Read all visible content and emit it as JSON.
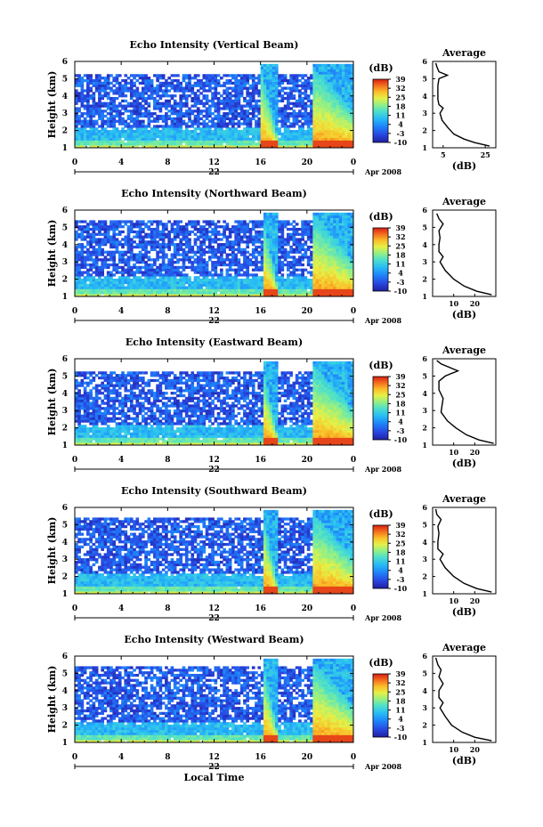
{
  "figure": {
    "x_axis_label": "Local Time",
    "date_label": "22",
    "month_year_label": "Apr 2008",
    "avg_title": "Average",
    "avg_xlabel": "(dB)",
    "colorbar_label": "(dB)"
  },
  "chart_data": [
    {
      "type": "heatmap",
      "title": "Echo Intensity (Vertical Beam)",
      "ylabel": "Height (km)",
      "xlabel": "Local Time",
      "x_ticks": [
        "0",
        "4",
        "8",
        "12",
        "16",
        "20",
        "0"
      ],
      "x_range_hours": [
        0,
        24
      ],
      "ylim": [
        1,
        6
      ],
      "y_ticks": [
        "1",
        "2",
        "3",
        "4",
        "5",
        "6"
      ],
      "colorbar": {
        "label": "(dB)",
        "ticks": [
          "39",
          "32",
          "25",
          "18",
          "11",
          "4",
          "-3",
          "-10"
        ],
        "range": [
          -10,
          39
        ]
      },
      "precip_events_hours": [
        [
          16.0,
          17.4
        ],
        [
          20.5,
          24.0
        ]
      ],
      "cloud_top_km": 5.2,
      "average_profile": {
        "title": "Average",
        "xlabel": "(dB)",
        "x_ticks": [
          "5",
          "25"
        ],
        "xlim": [
          0,
          30
        ],
        "ylim": [
          1,
          6
        ],
        "height_km": [
          1.1,
          1.3,
          1.5,
          1.8,
          2.2,
          2.6,
          3.0,
          3.3,
          3.5,
          3.8,
          4.2,
          4.6,
          5.0,
          5.2,
          5.4,
          5.7,
          5.9
        ],
        "db": [
          27,
          20,
          15,
          10,
          7,
          4.5,
          3.5,
          5,
          3,
          2.5,
          2.5,
          2.5,
          3,
          7,
          3,
          2,
          1.5
        ]
      }
    },
    {
      "type": "heatmap",
      "title": "Echo Intensity (Northward Beam)",
      "ylabel": "Height (km)",
      "xlabel": "Local Time",
      "x_ticks": [
        "0",
        "4",
        "8",
        "12",
        "16",
        "20",
        "0"
      ],
      "x_range_hours": [
        0,
        24
      ],
      "ylim": [
        1,
        6
      ],
      "y_ticks": [
        "1",
        "2",
        "3",
        "4",
        "5",
        "6"
      ],
      "colorbar": {
        "label": "(dB)",
        "ticks": [
          "39",
          "32",
          "25",
          "18",
          "11",
          "4",
          "-3",
          "-10"
        ],
        "range": [
          -10,
          39
        ]
      },
      "precip_events_hours": [
        [
          16.2,
          17.4
        ],
        [
          20.6,
          24.0
        ]
      ],
      "cloud_top_km": 5.3,
      "average_profile": {
        "title": "Average",
        "xlabel": "(dB)",
        "x_ticks": [
          "10",
          "20"
        ],
        "xlim": [
          0,
          30
        ],
        "ylim": [
          1,
          6
        ],
        "height_km": [
          1.1,
          1.3,
          1.6,
          2.0,
          2.5,
          3.0,
          3.3,
          3.6,
          4.0,
          4.4,
          4.8,
          5.2,
          5.5,
          5.8
        ],
        "db": [
          28,
          21,
          15,
          10,
          6,
          3.5,
          5,
          3,
          3,
          3.5,
          3,
          5,
          3,
          2
        ]
      }
    },
    {
      "type": "heatmap",
      "title": "Echo Intensity (Eastward Beam)",
      "ylabel": "Height (km)",
      "xlabel": "Local Time",
      "x_ticks": [
        "0",
        "4",
        "8",
        "12",
        "16",
        "20",
        "0"
      ],
      "x_range_hours": [
        0,
        24
      ],
      "ylim": [
        1,
        6
      ],
      "y_ticks": [
        "1",
        "2",
        "3",
        "4",
        "5",
        "6"
      ],
      "colorbar": {
        "label": "(dB)",
        "ticks": [
          "39",
          "32",
          "25",
          "18",
          "11",
          "4",
          "-3",
          "-10"
        ],
        "range": [
          -10,
          39
        ]
      },
      "precip_events_hours": [
        [
          16.2,
          17.4
        ],
        [
          20.5,
          24.0
        ]
      ],
      "cloud_top_km": 5.2,
      "average_profile": {
        "title": "Average",
        "xlabel": "(dB)",
        "x_ticks": [
          "10",
          "20"
        ],
        "xlim": [
          0,
          30
        ],
        "ylim": [
          1,
          6
        ],
        "height_km": [
          1.1,
          1.3,
          1.6,
          2.0,
          2.4,
          2.9,
          3.3,
          3.7,
          4.2,
          4.7,
          5.0,
          5.3,
          5.7,
          5.9
        ],
        "db": [
          29,
          22,
          16,
          11,
          7,
          4,
          4.5,
          5,
          3,
          3,
          6,
          12,
          4,
          2
        ]
      }
    },
    {
      "type": "heatmap",
      "title": "Echo Intensity (Southward Beam)",
      "ylabel": "Height (km)",
      "xlabel": "Local Time",
      "x_ticks": [
        "0",
        "4",
        "8",
        "12",
        "16",
        "20",
        "0"
      ],
      "x_range_hours": [
        0,
        24
      ],
      "ylim": [
        1,
        6
      ],
      "y_ticks": [
        "1",
        "2",
        "3",
        "4",
        "5",
        "6"
      ],
      "colorbar": {
        "label": "(dB)",
        "ticks": [
          "39",
          "32",
          "25",
          "18",
          "11",
          "4",
          "-3",
          "-10"
        ],
        "range": [
          -10,
          39
        ]
      },
      "precip_events_hours": [
        [
          16.2,
          17.4
        ],
        [
          20.5,
          24.0
        ]
      ],
      "cloud_top_km": 5.3,
      "average_profile": {
        "title": "Average",
        "xlabel": "(dB)",
        "x_ticks": [
          "10",
          "20"
        ],
        "xlim": [
          0,
          30
        ],
        "ylim": [
          1,
          6
        ],
        "height_km": [
          1.1,
          1.3,
          1.6,
          2.0,
          2.5,
          3.0,
          3.3,
          3.6,
          4.0,
          4.5,
          4.9,
          5.3,
          5.6,
          5.9
        ],
        "db": [
          28,
          21,
          15,
          10,
          6,
          3.5,
          5,
          2.5,
          2.5,
          3,
          2.5,
          4,
          2,
          1.5
        ]
      }
    },
    {
      "type": "heatmap",
      "title": "Echo Intensity (Westward Beam)",
      "ylabel": "Height (km)",
      "xlabel": "Local Time",
      "x_ticks": [
        "0",
        "4",
        "8",
        "12",
        "16",
        "20",
        "0"
      ],
      "x_range_hours": [
        0,
        24
      ],
      "ylim": [
        1,
        6
      ],
      "y_ticks": [
        "1",
        "2",
        "3",
        "4",
        "5",
        "6"
      ],
      "colorbar": {
        "label": "(dB)",
        "ticks": [
          "39",
          "32",
          "25",
          "18",
          "11",
          "4",
          "-3",
          "-10"
        ],
        "range": [
          -10,
          39
        ]
      },
      "precip_events_hours": [
        [
          16.2,
          17.4
        ],
        [
          20.5,
          24.0
        ]
      ],
      "cloud_top_km": 5.3,
      "average_profile": {
        "title": "Average",
        "xlabel": "(dB)",
        "x_ticks": [
          "10",
          "20"
        ],
        "xlim": [
          0,
          30
        ],
        "ylim": [
          1,
          6
        ],
        "height_km": [
          1.1,
          1.3,
          1.6,
          2.0,
          2.5,
          3.0,
          3.3,
          3.6,
          4.0,
          4.4,
          4.8,
          5.2,
          5.5,
          5.9
        ],
        "db": [
          28,
          20,
          14,
          9,
          6,
          3.5,
          5,
          3,
          3,
          5,
          3,
          4,
          2.5,
          1.5
        ]
      }
    }
  ]
}
